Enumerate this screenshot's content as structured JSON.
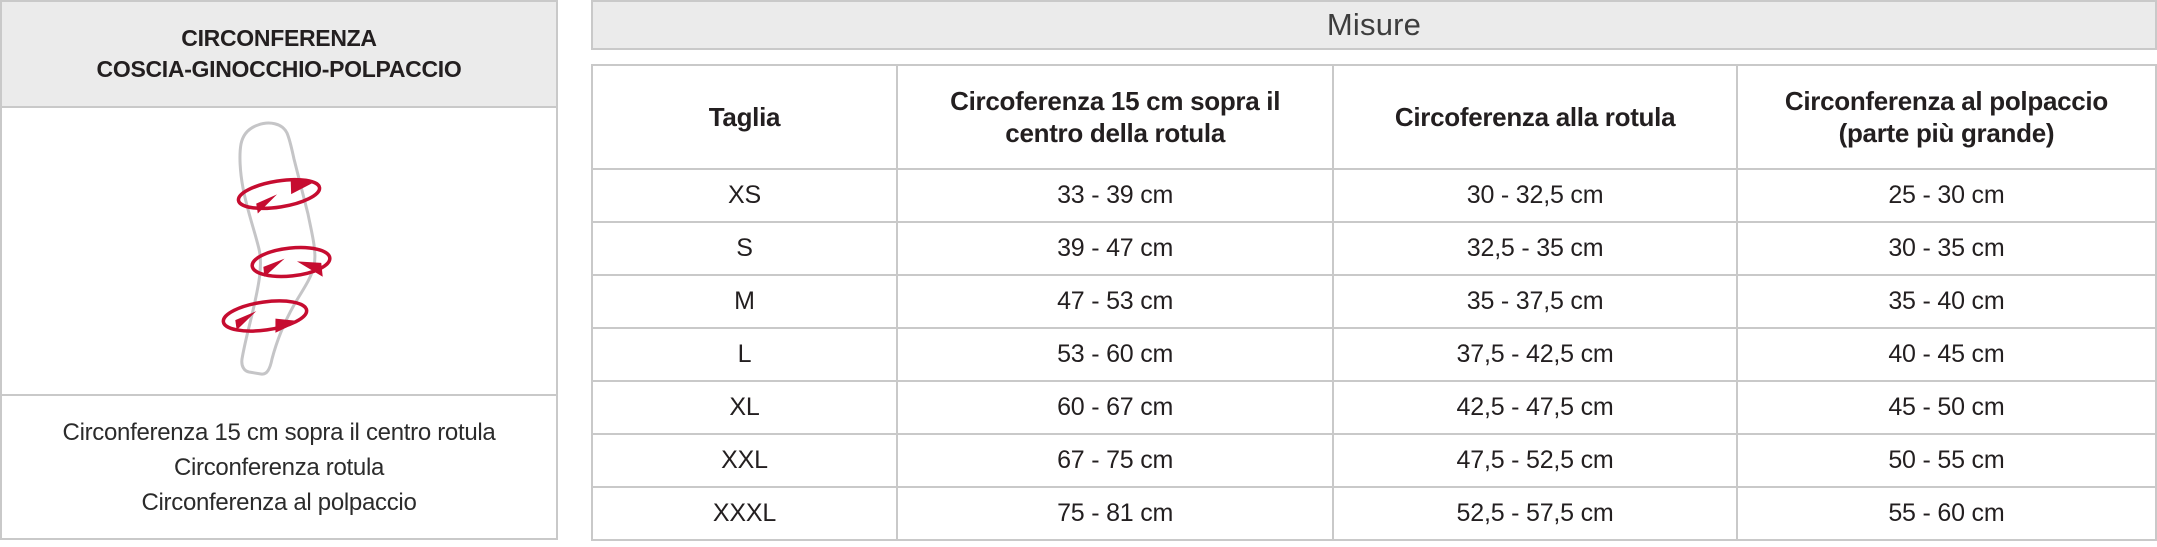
{
  "left_panel": {
    "title_line1": "CIRCONFERENZA",
    "title_line2": "COSCIA-GINOCCHIO-POLPACCIO",
    "caption_lines": [
      "Circonferenza 15 cm sopra il centro rotula",
      "Circonferenza rotula",
      "Circonferenza al polpaccio"
    ],
    "figure": {
      "icon": "bent-leg-with-circumference-arrows",
      "arrow_color": "#c60c30",
      "outline_color": "#c5c5c7"
    }
  },
  "table": {
    "title": "Misure",
    "columns": [
      "Taglia",
      "Circoferenza 15 cm sopra il centro della rotula",
      "Circoferenza alla rotula",
      "Circonferenza al polpaccio (parte più grande)"
    ],
    "rows": [
      [
        "XS",
        "33 - 39 cm",
        "30 - 32,5 cm",
        "25 - 30 cm"
      ],
      [
        "S",
        "39 - 47 cm",
        "32,5 - 35 cm",
        "30 - 35 cm"
      ],
      [
        "M",
        "47 - 53 cm",
        "35 - 37,5 cm",
        "35 - 40 cm"
      ],
      [
        "L",
        "53 - 60 cm",
        "37,5 - 42,5 cm",
        "40 - 45 cm"
      ],
      [
        "XL",
        "60 - 67 cm",
        "42,5 - 47,5 cm",
        "45 - 50 cm"
      ],
      [
        "XXL",
        "67 - 75 cm",
        "47,5 - 52,5 cm",
        "50 - 55 cm"
      ],
      [
        "XXXL",
        "75 - 81 cm",
        "52,5 - 57,5 cm",
        "55 - 60 cm"
      ]
    ]
  },
  "chart_data": {
    "type": "table",
    "title": "Misure",
    "columns": [
      "Taglia",
      "Circoferenza 15 cm sopra il centro della rotula",
      "Circoferenza alla rotula",
      "Circonferenza al polpaccio (parte più grande)"
    ],
    "rows": [
      [
        "XS",
        "33 - 39 cm",
        "30 - 32,5 cm",
        "25 - 30 cm"
      ],
      [
        "S",
        "39 - 47 cm",
        "32,5 - 35 cm",
        "30 - 35 cm"
      ],
      [
        "M",
        "47 - 53 cm",
        "35 - 37,5 cm",
        "35 - 40 cm"
      ],
      [
        "L",
        "53 - 60 cm",
        "37,5 - 42,5 cm",
        "40 - 45 cm"
      ],
      [
        "XL",
        "60 - 67 cm",
        "42,5 - 47,5 cm",
        "45 - 50 cm"
      ],
      [
        "XXL",
        "67 - 75 cm",
        "47,5 - 52,5 cm",
        "50 - 55 cm"
      ],
      [
        "XXXL",
        "75 - 81 cm",
        "52,5 - 57,5 cm",
        "55 - 60 cm"
      ]
    ]
  },
  "colors": {
    "band_background": "#ebebeb",
    "border": "#c9c9c9",
    "text": "#231f20",
    "arrow_red": "#c60c30"
  }
}
